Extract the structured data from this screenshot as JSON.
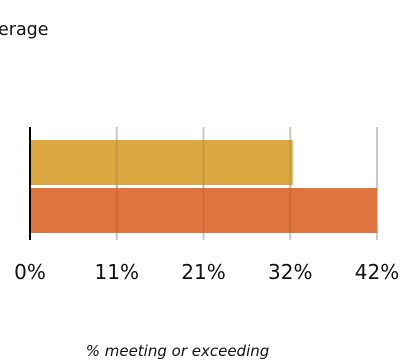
{
  "chart_data": {
    "type": "bar",
    "orientation": "horizontal",
    "title_visible_fragment": "erage",
    "xlabel": "% meeting or exceeding",
    "ylabel": "",
    "xlim": [
      0,
      42.4
    ],
    "tick_values": [
      0,
      10.6,
      21.2,
      31.8,
      42.4
    ],
    "tick_labels": [
      "0%",
      "11%",
      "21%",
      "32%",
      "42%"
    ],
    "grid": true,
    "legend": "none",
    "bars": [
      {
        "value": 32.1,
        "color": "#D9A43B"
      },
      {
        "value": 42.4,
        "color": "#DF6F38"
      }
    ]
  }
}
